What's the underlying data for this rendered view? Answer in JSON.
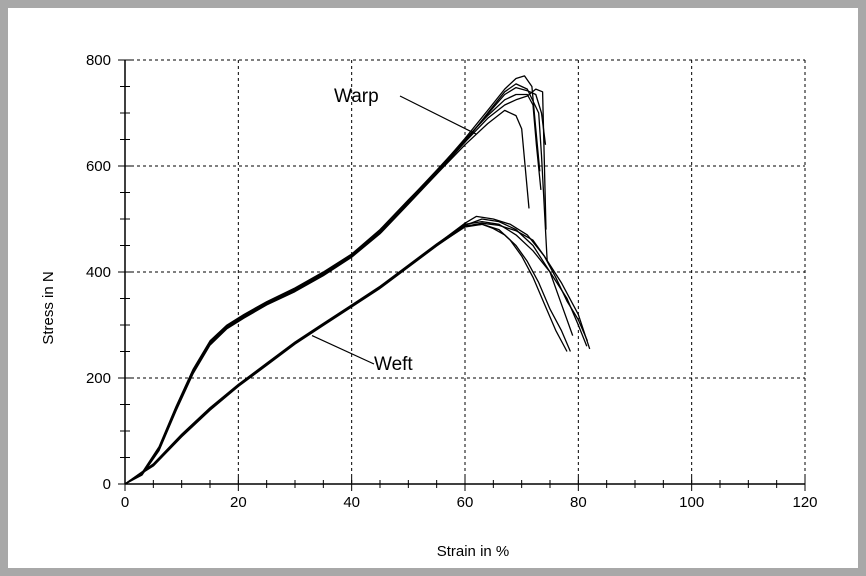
{
  "chart_data": {
    "type": "line",
    "title": "",
    "xlabel": "Strain in %",
    "ylabel": "Stress in N",
    "xlim": [
      0,
      120
    ],
    "ylim": [
      0,
      800
    ],
    "x_ticks": [
      "0",
      "20",
      "40",
      "60",
      "80",
      "100",
      "120"
    ],
    "y_ticks": [
      "0",
      "200",
      "400",
      "600",
      "800"
    ],
    "grid": true,
    "annotations": [
      {
        "text": "Warp",
        "points_to": [
          62,
          660
        ]
      },
      {
        "text": "Weft",
        "points_to": [
          33,
          280
        ]
      }
    ],
    "line_color": "#000000",
    "groups": [
      {
        "series": [
          {
            "x": [
              0,
              3,
              6,
              9,
              12,
              15,
              18,
              21,
              25,
              30,
              35,
              40,
              45,
              50,
              55,
              60,
              64,
              67,
              69,
              70,
              70.6,
              71.3
            ],
            "y": [
              0,
              18,
              65,
              140,
              210,
              265,
              295,
              315,
              340,
              365,
              395,
              430,
              475,
              530,
              585,
              640,
              680,
              705,
              695,
              670,
              600,
              520
            ]
          },
          {
            "x": [
              0,
              3,
              6,
              9,
              12,
              15,
              18,
              21,
              25,
              30,
              35,
              40,
              45,
              50,
              55,
              60,
              64,
              67,
              69,
              71,
              72,
              72.6,
              73.4
            ],
            "y": [
              0,
              20,
              68,
              145,
              215,
              268,
              298,
              318,
              342,
              368,
              398,
              432,
              478,
              535,
              592,
              650,
              695,
              725,
              735,
              735,
              715,
              640,
              555
            ]
          },
          {
            "x": [
              0,
              3,
              6,
              9,
              12,
              15,
              18,
              21,
              25,
              30,
              35,
              40,
              45,
              50,
              55,
              60,
              64,
              67,
              69,
              71,
              73,
              73.5,
              74.5
            ],
            "y": [
              0,
              17,
              63,
              138,
              208,
              262,
              293,
              313,
              338,
              363,
              393,
              428,
              472,
              528,
              585,
              645,
              700,
              740,
              755,
              745,
              700,
              620,
              420
            ]
          },
          {
            "x": [
              0,
              3,
              6,
              9,
              12,
              15,
              18,
              21,
              25,
              30,
              35,
              40,
              45,
              50,
              55,
              60,
              64,
              67,
              69,
              70.5,
              71.8,
              72.4,
              73.2
            ],
            "y": [
              0,
              19,
              66,
              142,
              212,
              266,
              296,
              316,
              340,
              366,
              396,
              431,
              476,
              532,
              590,
              652,
              705,
              745,
              765,
              770,
              750,
              680,
              590
            ]
          },
          {
            "x": [
              0,
              3,
              6,
              9,
              12,
              15,
              18,
              21,
              25,
              30,
              35,
              40,
              45,
              50,
              55,
              60,
              64,
              67,
              69,
              71,
              72.5,
              73.5,
              74.2
            ],
            "y": [
              0,
              18,
              64,
              140,
              210,
              264,
              294,
              314,
              339,
              364,
              394,
              429,
              474,
              530,
              588,
              648,
              698,
              735,
              748,
              742,
              735,
              700,
              640
            ]
          },
          {
            "x": [
              0,
              3,
              6,
              9,
              12,
              15,
              18,
              21,
              25,
              30,
              35,
              40,
              45,
              50,
              55,
              60,
              64,
              67,
              69,
              71,
              72.5,
              73.7,
              74.3
            ],
            "y": [
              0,
              21,
              70,
              146,
              216,
              270,
              300,
              320,
              344,
              370,
              400,
              434,
              480,
              536,
              590,
              645,
              690,
              715,
              725,
              732,
              745,
              740,
              480
            ]
          }
        ]
      },
      {
        "series": [
          {
            "x": [
              0,
              5,
              10,
              15,
              20,
              25,
              30,
              35,
              40,
              45,
              50,
              55,
              60,
              63,
              66,
              68,
              70,
              72,
              74,
              76,
              78
            ],
            "y": [
              0,
              35,
              90,
              140,
              185,
              225,
              265,
              300,
              335,
              370,
              410,
              450,
              485,
              490,
              480,
              460,
              430,
              390,
              340,
              290,
              250
            ]
          },
          {
            "x": [
              0,
              5,
              10,
              15,
              20,
              25,
              30,
              35,
              40,
              45,
              50,
              55,
              60,
              63,
              66,
              69,
              72,
              75,
              78,
              80,
              81.5
            ],
            "y": [
              0,
              38,
              94,
              144,
              188,
              228,
              268,
              303,
              338,
              373,
              413,
              453,
              490,
              495,
              490,
              470,
              440,
              400,
              350,
              300,
              260
            ]
          },
          {
            "x": [
              0,
              5,
              10,
              15,
              20,
              25,
              30,
              35,
              40,
              45,
              50,
              55,
              60,
              63,
              66,
              69,
              72,
              75,
              77,
              79
            ],
            "y": [
              0,
              36,
              92,
              142,
              186,
              226,
              266,
              301,
              336,
              371,
              411,
              451,
              488,
              500,
              495,
              480,
              450,
              400,
              340,
              280
            ]
          },
          {
            "x": [
              0,
              5,
              10,
              15,
              20,
              25,
              30,
              35,
              40,
              45,
              50,
              55,
              60,
              62,
              65,
              68,
              71,
              74,
              77,
              80,
              82
            ],
            "y": [
              0,
              37,
              93,
              143,
              187,
              227,
              267,
              302,
              337,
              372,
              412,
              452,
              492,
              505,
              500,
              490,
              470,
              430,
              380,
              320,
              255
            ]
          },
          {
            "x": [
              0,
              5,
              10,
              15,
              20,
              25,
              30,
              35,
              40,
              45,
              50,
              55,
              60,
              63,
              66,
              69,
              72,
              74,
              76,
              78,
              80,
              81.6
            ],
            "y": [
              0,
              34,
              89,
              139,
              184,
              224,
              264,
              299,
              334,
              369,
              409,
              449,
              486,
              492,
              488,
              478,
              460,
              430,
              390,
              345,
              310,
              270
            ]
          },
          {
            "x": [
              0,
              5,
              10,
              15,
              20,
              25,
              30,
              35,
              40,
              45,
              50,
              55,
              60,
              63,
              65,
              67,
              69,
              71,
              73,
              75,
              77,
              78.6
            ],
            "y": [
              0,
              36,
              91,
              141,
              185,
              225,
              265,
              300,
              335,
              370,
              410,
              450,
              487,
              490,
              482,
              470,
              450,
              420,
              380,
              330,
              290,
              250
            ]
          }
        ]
      }
    ]
  }
}
